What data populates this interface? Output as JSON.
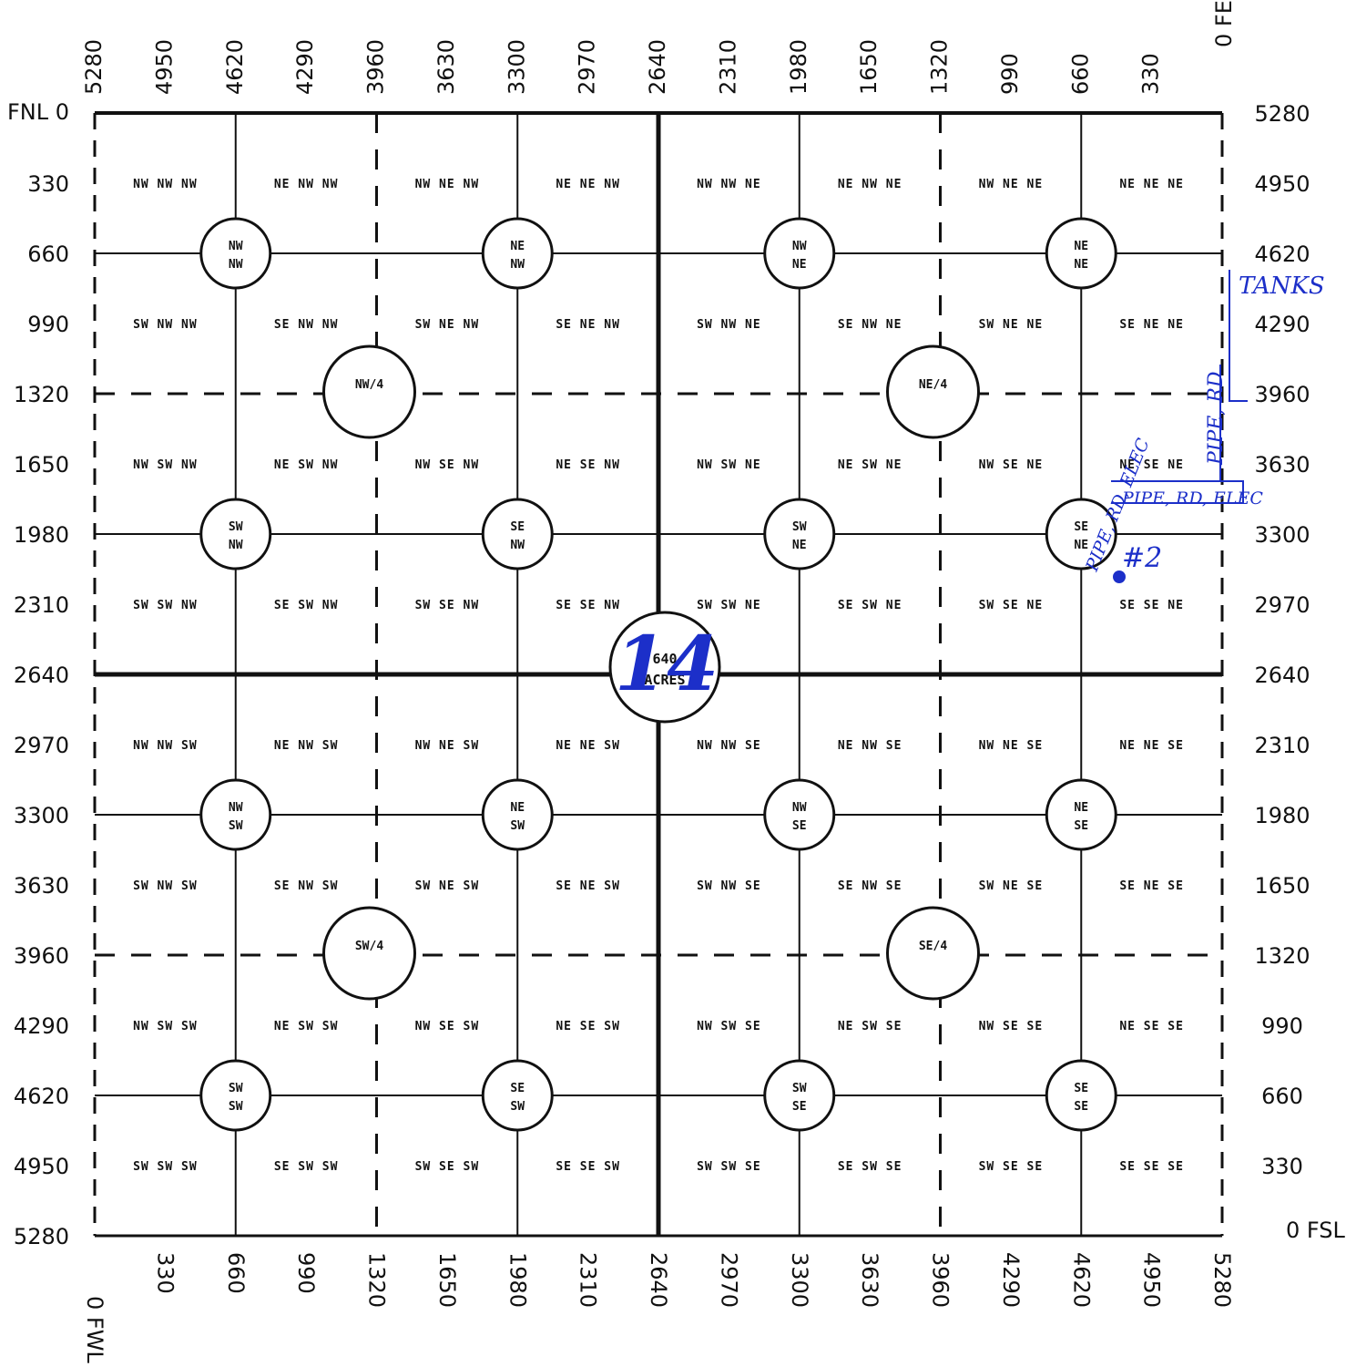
{
  "corners": {
    "fnl": "FNL 0",
    "fe": "0 FE",
    "fsl": "0 FSL",
    "fwl": "0 FWL"
  },
  "scales": {
    "top": [
      "5280",
      "4950",
      "4620",
      "4290",
      "3960",
      "3630",
      "3300",
      "2970",
      "2640",
      "2310",
      "1980",
      "1650",
      "1320",
      "990",
      "660",
      "330"
    ],
    "left": [
      "330",
      "660",
      "990",
      "1320",
      "1650",
      "1980",
      "2310",
      "2640",
      "2970",
      "3300",
      "3630",
      "3960",
      "4290",
      "4620",
      "4950",
      "5280"
    ],
    "right": [
      "5280",
      "4950",
      "4620",
      "4290",
      "3960",
      "3630",
      "3300",
      "2970",
      "2640",
      "2310",
      "1980",
      "1650",
      "1320",
      "990",
      "660",
      "330"
    ],
    "bottom": [
      "330",
      "660",
      "990",
      "1320",
      "1650",
      "1980",
      "2310",
      "2640",
      "2970",
      "3300",
      "3630",
      "3960",
      "4290",
      "4620",
      "4950",
      "5280"
    ]
  },
  "cells": [
    [
      "NW NW NW",
      "NE NW NW",
      "NW NE NW",
      "NE NE NW",
      "NW NW NE",
      "NE NW NE",
      "NW NE NE",
      "NE NE NE"
    ],
    [
      "SW NW NW",
      "SE NW NW",
      "SW NE NW",
      "SE NE NW",
      "SW NW NE",
      "SE NW NE",
      "SW NE NE",
      "SE NE NE"
    ],
    [
      "NW SW NW",
      "NE SW NW",
      "NW SE NW",
      "NE SE NW",
      "NW SW NE",
      "NE SW NE",
      "NW SE NE",
      "NE SE NE"
    ],
    [
      "SW SW NW",
      "SE SW NW",
      "SW SE NW",
      "SE SE NW",
      "SW SW NE",
      "SE SW NE",
      "SW SE NE",
      "SE SE NE"
    ],
    [
      "NW NW SW",
      "NE NW SW",
      "NW NE SW",
      "NE NE SW",
      "NW NW SE",
      "NE NW SE",
      "NW NE SE",
      "NE NE SE"
    ],
    [
      "SW NW SW",
      "SE NW SW",
      "SW NE SW",
      "SE NE SW",
      "SW NW SE",
      "SE NW SE",
      "SW NE SE",
      "SE NE SE"
    ],
    [
      "NW SW SW",
      "NE SW SW",
      "NW SE SW",
      "NE SE SW",
      "NW SW SE",
      "NE SW SE",
      "NW SE SE",
      "NE SE SE"
    ],
    [
      "SW SW SW",
      "SE SW SW",
      "SW SE SW",
      "SE SE SW",
      "SW SW SE",
      "SE SW SE",
      "SW SE SE",
      "SE SE SE"
    ]
  ],
  "circles": [
    [
      [
        "NW",
        "NW"
      ],
      [
        "NE",
        "NW"
      ],
      [
        "NW",
        "NE"
      ],
      [
        "NE",
        "NE"
      ]
    ],
    [
      [
        "SW",
        "NW"
      ],
      [
        "SE",
        "NW"
      ],
      [
        "SW",
        "NE"
      ],
      [
        "SE",
        "NE"
      ]
    ],
    [
      [
        "NW",
        "SW"
      ],
      [
        "NE",
        "SW"
      ],
      [
        "NW",
        "SE"
      ],
      [
        "NE",
        "SE"
      ]
    ],
    [
      [
        "SW",
        "SW"
      ],
      [
        "SE",
        "SW"
      ],
      [
        "SW",
        "SE"
      ],
      [
        "SE",
        "SE"
      ]
    ]
  ],
  "quarters": [
    "NW/4",
    "NE/4",
    "SW/4",
    "SE/4"
  ],
  "center": {
    "line1": "640",
    "line2": "ACRES"
  },
  "annotations": {
    "section": "14",
    "tanks": "TANKS",
    "pipe_rd_elec_1": "PIPE, RD, ELEC",
    "pipe_rd_elec_2": "PIPE, RD, ELEC",
    "pipe_rd": "PIPE, RD",
    "well": "#2",
    "ink_color": "#1c2fc9"
  }
}
